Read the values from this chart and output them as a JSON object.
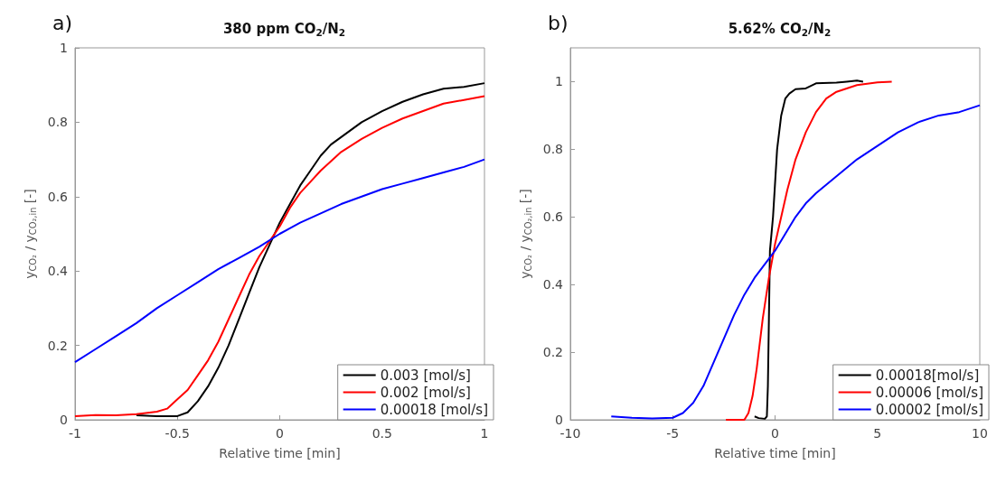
{
  "chart_data": [
    {
      "type": "line",
      "title": "380 ppm CO$_{2}$/N$_{2}$",
      "xlabel": "Relative time [min]",
      "ylabel": "y$_{CO₂}$ / y$_{CO₂,in}$ [-]",
      "annotations": [
        "a)"
      ],
      "xlim": [
        -1,
        1
      ],
      "xticks": [
        -1,
        -0.5,
        0,
        0.5,
        1
      ],
      "ylim": [
        0,
        1
      ],
      "yticks": [
        0,
        0.2,
        0.4,
        0.6,
        0.8,
        1
      ],
      "legend": "bottom right",
      "marker": "none",
      "series": [
        {
          "name": "0.003 [mol/s]",
          "color": "#000000",
          "x": [
            -0.7,
            -0.6,
            -0.5,
            -0.45,
            -0.4,
            -0.35,
            -0.3,
            -0.25,
            -0.2,
            -0.15,
            -0.1,
            -0.05,
            0,
            0.05,
            0.1,
            0.15,
            0.2,
            0.25,
            0.3,
            0.4,
            0.5,
            0.6,
            0.7,
            0.8,
            0.9,
            1
          ],
          "values": [
            0.012,
            0.01,
            0.01,
            0.02,
            0.05,
            0.09,
            0.14,
            0.2,
            0.27,
            0.34,
            0.41,
            0.47,
            0.53,
            0.58,
            0.63,
            0.67,
            0.71,
            0.74,
            0.76,
            0.8,
            0.83,
            0.855,
            0.875,
            0.89,
            0.895,
            0.905
          ]
        },
        {
          "name": "0.002 [mol/s]",
          "color": "#ff0000",
          "x": [
            -1,
            -0.9,
            -0.8,
            -0.7,
            -0.6,
            -0.55,
            -0.5,
            -0.45,
            -0.4,
            -0.35,
            -0.3,
            -0.25,
            -0.2,
            -0.15,
            -0.1,
            -0.05,
            0,
            0.05,
            0.1,
            0.15,
            0.2,
            0.3,
            0.4,
            0.5,
            0.6,
            0.7,
            0.8,
            0.9,
            1
          ],
          "values": [
            0.01,
            0.013,
            0.012,
            0.015,
            0.022,
            0.03,
            0.055,
            0.08,
            0.12,
            0.16,
            0.21,
            0.27,
            0.33,
            0.39,
            0.44,
            0.48,
            0.52,
            0.57,
            0.61,
            0.64,
            0.67,
            0.72,
            0.755,
            0.785,
            0.81,
            0.83,
            0.85,
            0.86,
            0.87
          ]
        },
        {
          "name": "0.00018 [mol/s]",
          "color": "#0000ff",
          "x": [
            -1,
            -0.9,
            -0.8,
            -0.7,
            -0.6,
            -0.5,
            -0.4,
            -0.3,
            -0.2,
            -0.1,
            0,
            0.1,
            0.2,
            0.3,
            0.4,
            0.5,
            0.6,
            0.7,
            0.8,
            0.9,
            1
          ],
          "values": [
            0.155,
            0.19,
            0.225,
            0.26,
            0.3,
            0.335,
            0.37,
            0.405,
            0.435,
            0.465,
            0.5,
            0.53,
            0.555,
            0.58,
            0.6,
            0.62,
            0.635,
            0.65,
            0.665,
            0.68,
            0.7
          ]
        }
      ]
    },
    {
      "type": "line",
      "title": "5.62% CO$_{2}$/N$_{2}$",
      "xlabel": "Relative time [min]",
      "ylabel": "y$_{CO₂}$ / y$_{CO₂,in}$ [-]",
      "annotations": [
        "b)"
      ],
      "xlim": [
        -10,
        10
      ],
      "xticks": [
        -10,
        -5,
        0,
        5,
        10
      ],
      "ylim": [
        0,
        1.1
      ],
      "yticks": [
        0,
        0.2,
        0.4,
        0.6,
        0.8,
        1
      ],
      "legend": "bottom right",
      "marker": "none",
      "series": [
        {
          "name": "0.00018[mol/s]",
          "color": "#000000",
          "x": [
            -1,
            -0.8,
            -0.5,
            -0.4,
            -0.35,
            -0.3,
            -0.25,
            -0.1,
            0,
            0.1,
            0.2,
            0.3,
            0.5,
            0.7,
            1,
            1.5,
            2,
            3,
            3.5,
            4,
            4.3
          ],
          "values": [
            0.01,
            0.005,
            0.003,
            0.01,
            0.1,
            0.3,
            0.5,
            0.6,
            0.7,
            0.8,
            0.85,
            0.9,
            0.95,
            0.965,
            0.978,
            0.98,
            0.995,
            0.997,
            1,
            1.003,
            1
          ]
        },
        {
          "name": "0.00006 [mol/s]",
          "color": "#ff0000",
          "x": [
            -2.4,
            -1.5,
            -1.3,
            -1.1,
            -0.9,
            -0.6,
            -0.3,
            0,
            0.3,
            0.6,
            1,
            1.5,
            2,
            2.5,
            3,
            4,
            5,
            5.7
          ],
          "values": [
            0,
            0,
            0.02,
            0.07,
            0.15,
            0.3,
            0.42,
            0.52,
            0.6,
            0.68,
            0.77,
            0.85,
            0.91,
            0.95,
            0.97,
            0.99,
            0.998,
            1
          ]
        },
        {
          "name": "0.00002 [mol/s]",
          "color": "#0000ff",
          "x": [
            -8,
            -7,
            -6,
            -5,
            -4.5,
            -4,
            -3.5,
            -3,
            -2.5,
            -2,
            -1.5,
            -1,
            -0.5,
            0,
            0.5,
            1,
            1.5,
            2,
            3,
            4,
            5,
            6,
            7,
            8,
            9,
            10
          ],
          "values": [
            0.01,
            0.006,
            0.004,
            0.006,
            0.02,
            0.05,
            0.1,
            0.17,
            0.24,
            0.31,
            0.37,
            0.42,
            0.46,
            0.5,
            0.55,
            0.6,
            0.64,
            0.67,
            0.72,
            0.77,
            0.81,
            0.85,
            0.88,
            0.9,
            0.91,
            0.93
          ]
        }
      ]
    }
  ]
}
